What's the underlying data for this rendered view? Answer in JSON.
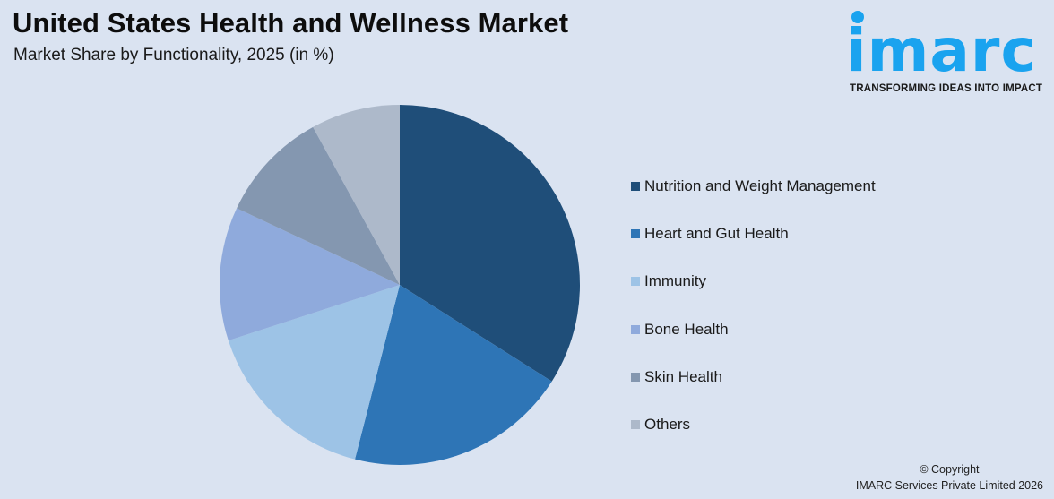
{
  "header": {
    "title": "United States Health and Wellness Market",
    "subtitle": "Market Share by Functionality, 2025 (in %)"
  },
  "logo": {
    "wordmark": "imarc",
    "tagline": "TRANSFORMING IDEAS INTO IMPACT",
    "color": "#1aa3ef"
  },
  "footer": {
    "line1": "© Copyright",
    "line2": "IMARC Services Private Limited 2026"
  },
  "chart_data": {
    "type": "pie",
    "title": "United States Health and Wellness Market",
    "subtitle": "Market Share by Functionality, 2025 (in %)",
    "categories": [
      "Nutrition and Weight Management",
      "Heart and Gut Health",
      "Immunity",
      "Bone Health",
      "Skin Health",
      "Others"
    ],
    "values": [
      34,
      20,
      16,
      12,
      10,
      8
    ],
    "colors": [
      "#1f4e79",
      "#2e75b6",
      "#9dc3e6",
      "#8faadc",
      "#8497b0",
      "#adb9ca"
    ],
    "start_angle": "12 o'clock, clockwise",
    "legend_position": "right",
    "data_labels": false
  }
}
